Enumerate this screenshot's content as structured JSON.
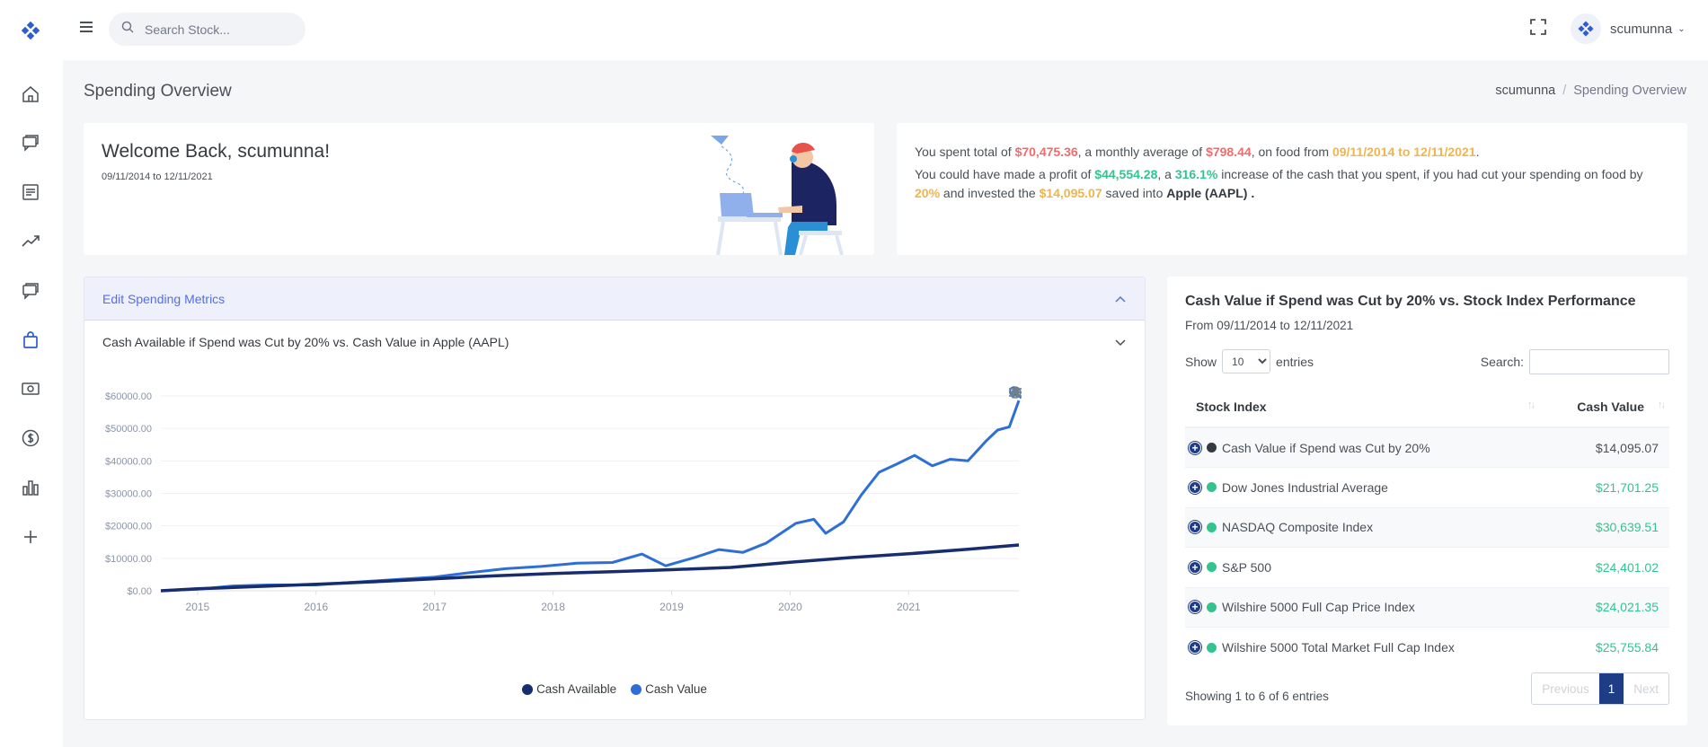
{
  "topbar": {
    "search_placeholder": "Search Stock...",
    "username": "scumunna"
  },
  "page": {
    "title": "Spending Overview",
    "breadcrumb": [
      "scumunna",
      "Spending Overview"
    ]
  },
  "welcome": {
    "title": "Welcome Back, scumunna!",
    "dates": "09/11/2014 to 12/11/2021"
  },
  "summary": {
    "p1_a": "You spent total of ",
    "total": "$70,475.36",
    "p1_b": ", a monthly average of ",
    "monthly": "$798.44",
    "p1_c": ", on food from ",
    "range": "09/11/2014 to 12/11/2021",
    "p1_d": ".",
    "p2_a": "You could have made a profit of ",
    "profit": "$44,554.28",
    "p2_b": ", a ",
    "increase": "316.1%",
    "p2_c": " increase of the cash that you spent, if you had cut your spending on food by ",
    "cut": "20%",
    "p2_d": " and invested the ",
    "saved": "$14,095.07",
    "p2_e": " saved into ",
    "stock": "Apple (AAPL) ."
  },
  "accordion": {
    "edit_label": "Edit Spending Metrics",
    "chart_title": "Cash Available if Spend was Cut by 20% vs. Cash Value in Apple (AAPL)"
  },
  "chart_data": {
    "type": "line",
    "x_ticks": [
      "2015",
      "2016",
      "2017",
      "2018",
      "2019",
      "2020",
      "2021"
    ],
    "y_ticks": [
      "$60000.00",
      "$50000.00",
      "$40000.00",
      "$30000.00",
      "$20000.00",
      "$10000.00",
      "$0.00"
    ],
    "ylim": [
      0,
      60000
    ],
    "xlim": [
      2014.69,
      2021.93
    ],
    "series": [
      {
        "name": "Cash Available",
        "color": "#172d6e",
        "x": [
          2014.69,
          2015.0,
          2015.5,
          2016.0,
          2016.5,
          2017.0,
          2017.5,
          2018.0,
          2018.5,
          2019.0,
          2019.5,
          2020.0,
          2020.5,
          2021.0,
          2021.5,
          2021.93
        ],
        "y": [
          0,
          600,
          1300,
          2000,
          2800,
          3700,
          4600,
          5300,
          5900,
          6500,
          7200,
          8800,
          10200,
          11400,
          12800,
          14095
        ]
      },
      {
        "name": "Cash Value",
        "color": "#2e6fd6",
        "x": [
          2014.69,
          2015.0,
          2015.3,
          2015.6,
          2016.0,
          2016.3,
          2016.6,
          2017.0,
          2017.3,
          2017.6,
          2017.9,
          2018.2,
          2018.5,
          2018.75,
          2018.95,
          2019.2,
          2019.4,
          2019.6,
          2019.8,
          2020.05,
          2020.2,
          2020.3,
          2020.45,
          2020.6,
          2020.75,
          2020.9,
          2021.05,
          2021.2,
          2021.35,
          2021.5,
          2021.65,
          2021.75,
          2021.85,
          2021.93
        ],
        "y": [
          0,
          500,
          1500,
          1800,
          1800,
          2600,
          3300,
          4200,
          5600,
          6800,
          7500,
          8500,
          8700,
          11300,
          7700,
          10300,
          12700,
          11800,
          14700,
          20800,
          22000,
          17700,
          21200,
          29500,
          36500,
          39000,
          41700,
          38500,
          40500,
          40000,
          46000,
          49500,
          50500,
          58600
        ]
      }
    ]
  },
  "table": {
    "title": "Cash Value if Spend was Cut by 20% vs. Stock Index Performance",
    "from": "From 09/11/2014 to 12/11/2021",
    "show_label": "Show",
    "entries_label": "entries",
    "page_size": "10",
    "search_label": "Search:",
    "headers": [
      "Stock Index",
      "Cash Value"
    ],
    "rows": [
      {
        "name": "Cash Value if Spend was Cut by 20%",
        "value": "$14,095.07",
        "dot": "#343a40"
      },
      {
        "name": "Dow Jones Industrial Average",
        "value": "$21,701.25",
        "dot": "#34c38f"
      },
      {
        "name": "NASDAQ Composite Index",
        "value": "$30,639.51",
        "dot": "#34c38f"
      },
      {
        "name": "S&P 500",
        "value": "$24,401.02",
        "dot": "#34c38f"
      },
      {
        "name": "Wilshire 5000 Full Cap Price Index",
        "value": "$24,021.35",
        "dot": "#34c38f"
      },
      {
        "name": "Wilshire 5000 Total Market Full Cap Index",
        "value": "$25,755.84",
        "dot": "#34c38f"
      }
    ],
    "showing": "Showing 1 to 6 of 6 entries",
    "pager": {
      "previous": "Previous",
      "page": "1",
      "next": "Next"
    }
  }
}
